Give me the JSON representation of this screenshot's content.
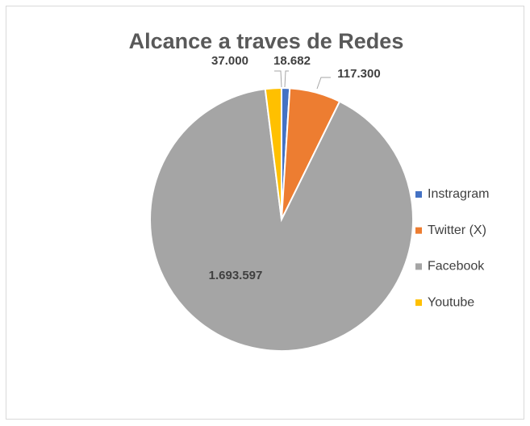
{
  "chart_data": {
    "type": "pie",
    "title": "Alcance a traves de Redes",
    "categories": [
      "Instragram",
      "Twitter (X)",
      "Facebook",
      "Youtube"
    ],
    "values": [
      18682,
      117300,
      1693597,
      37000
    ],
    "value_labels": [
      "18.682",
      "117.300",
      "1.693.597",
      "37.000"
    ],
    "colors": [
      "#4472c4",
      "#ed7d31",
      "#a5a5a5",
      "#ffc000"
    ],
    "legend": "right"
  }
}
